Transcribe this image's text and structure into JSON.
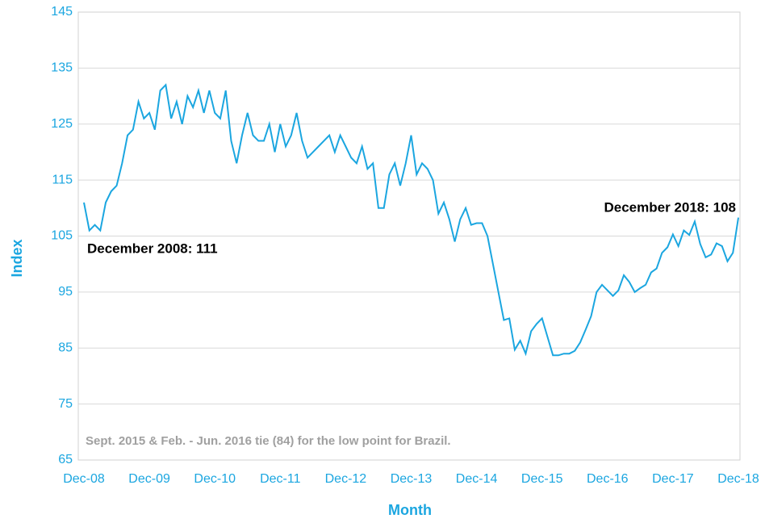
{
  "chart_data": {
    "type": "line",
    "x_label": "Month",
    "y_label": "Index",
    "annotations": [
      "December 2008: 111",
      "December 2018: 108",
      "Sept. 2015 & Feb. - Jun. 2016 tie (84) for the low point for Brazil."
    ],
    "categories": [
      "Dec-08",
      null,
      null,
      null,
      null,
      null,
      null,
      null,
      null,
      null,
      null,
      null,
      "Dec-09",
      null,
      null,
      null,
      null,
      null,
      null,
      null,
      null,
      null,
      null,
      null,
      "Dec-10",
      null,
      null,
      null,
      null,
      null,
      null,
      null,
      null,
      null,
      null,
      null,
      "Dec-11",
      null,
      null,
      null,
      null,
      null,
      null,
      null,
      null,
      null,
      null,
      null,
      "Dec-12",
      null,
      null,
      null,
      null,
      null,
      null,
      null,
      null,
      null,
      null,
      null,
      "Dec-13",
      null,
      null,
      null,
      null,
      null,
      null,
      null,
      null,
      null,
      null,
      null,
      "Dec-14",
      null,
      null,
      null,
      null,
      null,
      null,
      null,
      null,
      null,
      null,
      null,
      "Dec-15",
      null,
      null,
      null,
      null,
      null,
      null,
      null,
      null,
      null,
      null,
      null,
      "Dec-16",
      null,
      null,
      null,
      null,
      null,
      null,
      null,
      null,
      null,
      null,
      null,
      "Dec-17",
      null,
      null,
      null,
      null,
      null,
      null,
      null,
      null,
      null,
      null,
      null,
      "Dec-18"
    ],
    "series": [
      {
        "color": "#1ba6e0",
        "values": [
          111,
          106,
          107,
          106,
          111,
          113,
          114,
          118,
          123,
          124,
          129,
          126,
          127,
          124,
          131,
          132,
          126,
          129,
          125,
          130,
          128,
          131,
          127,
          131,
          127,
          126,
          131,
          122,
          118,
          123,
          127,
          123,
          122,
          122,
          125,
          120,
          125,
          121,
          123,
          127,
          122,
          119,
          120,
          121,
          122,
          123,
          120,
          123,
          121,
          119,
          118,
          121,
          117,
          118,
          110,
          110,
          116,
          118,
          114,
          118,
          123,
          116,
          118,
          117,
          115,
          109,
          111,
          108,
          104,
          108,
          110,
          107,
          107.3,
          107.3,
          105,
          100,
          95,
          90,
          90.3,
          84.7,
          86.3,
          84,
          88,
          89.3,
          90.3,
          87,
          83.7,
          83.7,
          84,
          84,
          84.5,
          86,
          88.3,
          90.7,
          95,
          96.3,
          95.3,
          94.3,
          95.3,
          98,
          96.8,
          95,
          95.7,
          96.3,
          98.5,
          99.2,
          102,
          103,
          105.3,
          103.2,
          106,
          105.2,
          107.6,
          103.6,
          101.2,
          101.7,
          103.7,
          103.2,
          100.5,
          102,
          108.3
        ]
      }
    ],
    "ylim": [
      65,
      145
    ],
    "yticks": [
      65,
      75,
      85,
      95,
      105,
      115,
      125,
      135,
      145
    ],
    "grid": true
  }
}
